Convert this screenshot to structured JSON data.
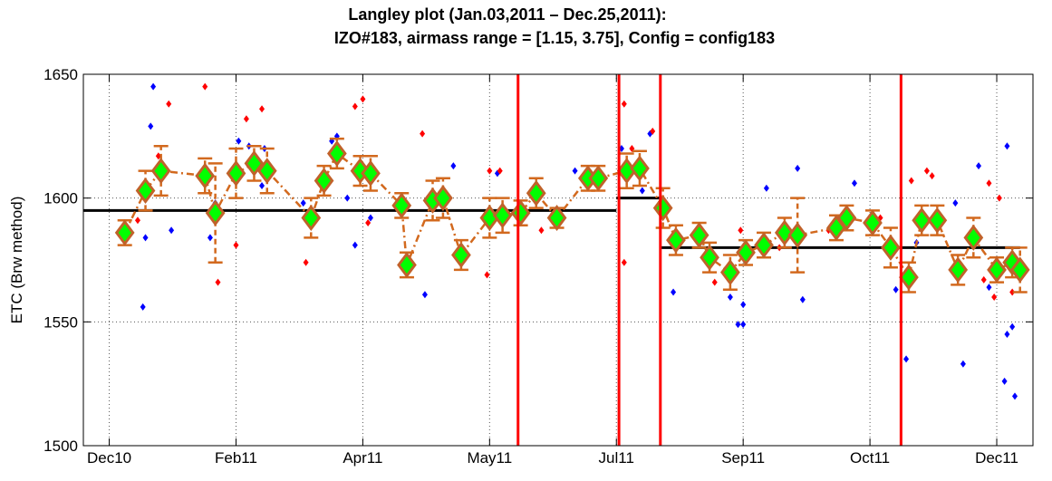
{
  "chart_data": {
    "type": "scatter",
    "title": [
      "Langley plot (Jan.03,2011 – Dec.25,2011):",
      "IZO#183, airmass range = [1.15, 3.75], Config = config183"
    ],
    "ylabel": "ETC (Brw method)",
    "xlim": [
      -12,
      355
    ],
    "xticks": [
      {
        "value": -2,
        "label": "Dec10"
      },
      {
        "value": 47,
        "label": "Feb11"
      },
      {
        "value": 96,
        "label": "Apr11"
      },
      {
        "value": 145,
        "label": "May11"
      },
      {
        "value": 194,
        "label": "Jul11"
      },
      {
        "value": 243,
        "label": "Sep11"
      },
      {
        "value": 292,
        "label": "Oct11"
      },
      {
        "value": 341,
        "label": "Dec11"
      }
    ],
    "ylim": [
      1500,
      1650
    ],
    "yticks": [
      1500,
      1550,
      1600,
      1650
    ],
    "grid": true,
    "series": [
      {
        "color": "#0000ff",
        "x": [
          12,
          11,
          14,
          15,
          22,
          37,
          39,
          48,
          52,
          58,
          57,
          73,
          84,
          86,
          90,
          93,
          99,
          120,
          131,
          148,
          145,
          178,
          196,
          204,
          207,
          216,
          238,
          241,
          243,
          243,
          252,
          264,
          266,
          286,
          302,
          306,
          310,
          325,
          328,
          334,
          338,
          344,
          345,
          345,
          347,
          348
        ],
        "values": [
          1584,
          1556,
          1629,
          1645,
          1587,
          1584,
          1598,
          1623,
          1621,
          1620,
          1605,
          1598,
          1623,
          1625,
          1600,
          1581,
          1592,
          1561,
          1613,
          1610,
          1594,
          1611,
          1620,
          1603,
          1626,
          1562,
          1560,
          1549,
          1549,
          1557,
          1604,
          1612,
          1559,
          1606,
          1563,
          1535,
          1582,
          1598,
          1533,
          1613,
          1564,
          1526,
          1545,
          1621,
          1548,
          1520
        ]
      },
      {
        "color": "#ff0000",
        "x": [
          9,
          17,
          21,
          35,
          40,
          47,
          51,
          57,
          74,
          93,
          96,
          98,
          119,
          144,
          145,
          149,
          165,
          197,
          197,
          200,
          208,
          232,
          239,
          242,
          257,
          276,
          296,
          308,
          314,
          316,
          336,
          340,
          338,
          347,
          342
        ],
        "values": [
          1591,
          1617,
          1638,
          1645,
          1566,
          1581,
          1632,
          1636,
          1574,
          1637,
          1640,
          1590,
          1626,
          1569,
          1611,
          1611,
          1587,
          1638,
          1574,
          1620,
          1627,
          1566,
          1572,
          1587,
          1580,
          1587,
          1592,
          1607,
          1611,
          1609,
          1567,
          1560,
          1606,
          1562,
          1600
        ]
      },
      {
        "color": "#00ff00",
        "x": [
          4,
          12,
          18,
          35,
          39,
          47,
          54,
          59,
          76,
          81,
          86,
          95,
          99,
          111,
          113,
          123,
          127,
          134,
          145,
          150,
          157,
          163,
          171,
          183,
          187,
          198,
          203,
          212,
          217,
          226,
          230,
          238,
          244,
          251,
          259,
          264,
          279,
          283,
          293,
          300,
          307,
          312,
          318,
          326,
          332,
          341,
          347,
          350
        ],
        "values": [
          1586,
          1603,
          1611,
          1609,
          1594,
          1610,
          1614,
          1611,
          1592,
          1607,
          1618,
          1611,
          1610,
          1597,
          1573,
          1599,
          1600,
          1577,
          1592,
          1593,
          1594,
          1602,
          1592,
          1608,
          1608,
          1611,
          1612,
          1596,
          1583,
          1585,
          1576,
          1570,
          1578,
          1581,
          1586,
          1585,
          1588,
          1592,
          1590,
          1580,
          1568,
          1591,
          1591,
          1571,
          1584,
          1571,
          1574,
          1571
        ],
        "errors": [
          5,
          8,
          10,
          7,
          20,
          10,
          7,
          9,
          8,
          6,
          6,
          6,
          7,
          5,
          5,
          8,
          8,
          6,
          8,
          7,
          5,
          6,
          4,
          5,
          5,
          7,
          7,
          8,
          6,
          5,
          6,
          7,
          5,
          5,
          6,
          15,
          5,
          5,
          5,
          8,
          6,
          6,
          6,
          6,
          8,
          5,
          6,
          9
        ]
      }
    ],
    "hlines": [
      {
        "y": 1595,
        "x": [
          -12,
          194
        ]
      },
      {
        "y": 1600,
        "x": [
          194,
          211
        ]
      },
      {
        "y": 1580,
        "x": [
          211,
          350
        ]
      }
    ],
    "vlines": {
      "color": "#ff0000",
      "x": [
        156,
        195,
        211,
        304
      ]
    }
  }
}
